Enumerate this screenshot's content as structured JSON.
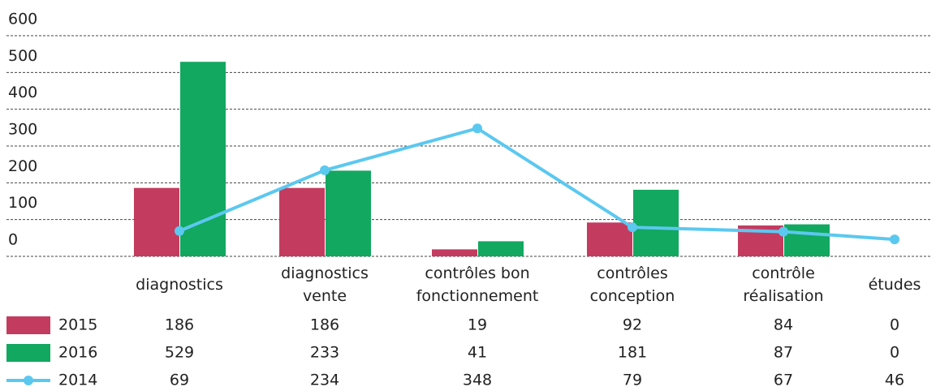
{
  "chart_data": {
    "type": "bar",
    "categories": [
      "diagnostics",
      "diagnostics vente",
      "contrôles bon fonctionnement",
      "contrôles conception",
      "contrôle réalisation",
      "études"
    ],
    "series": [
      {
        "name": "2015",
        "type": "bar",
        "color": "#c43b60",
        "values": [
          186,
          186,
          19,
          92,
          84,
          0
        ]
      },
      {
        "name": "2016",
        "type": "bar",
        "color": "#12a860",
        "values": [
          529,
          233,
          41,
          181,
          87,
          0
        ]
      },
      {
        "name": "2014",
        "type": "line",
        "color": "#5bc8f0",
        "values": [
          69,
          234,
          348,
          79,
          67,
          46
        ]
      }
    ],
    "ylim": [
      0,
      600
    ],
    "yticks": [
      0,
      100,
      200,
      300,
      400,
      500,
      600
    ],
    "grid": true
  }
}
